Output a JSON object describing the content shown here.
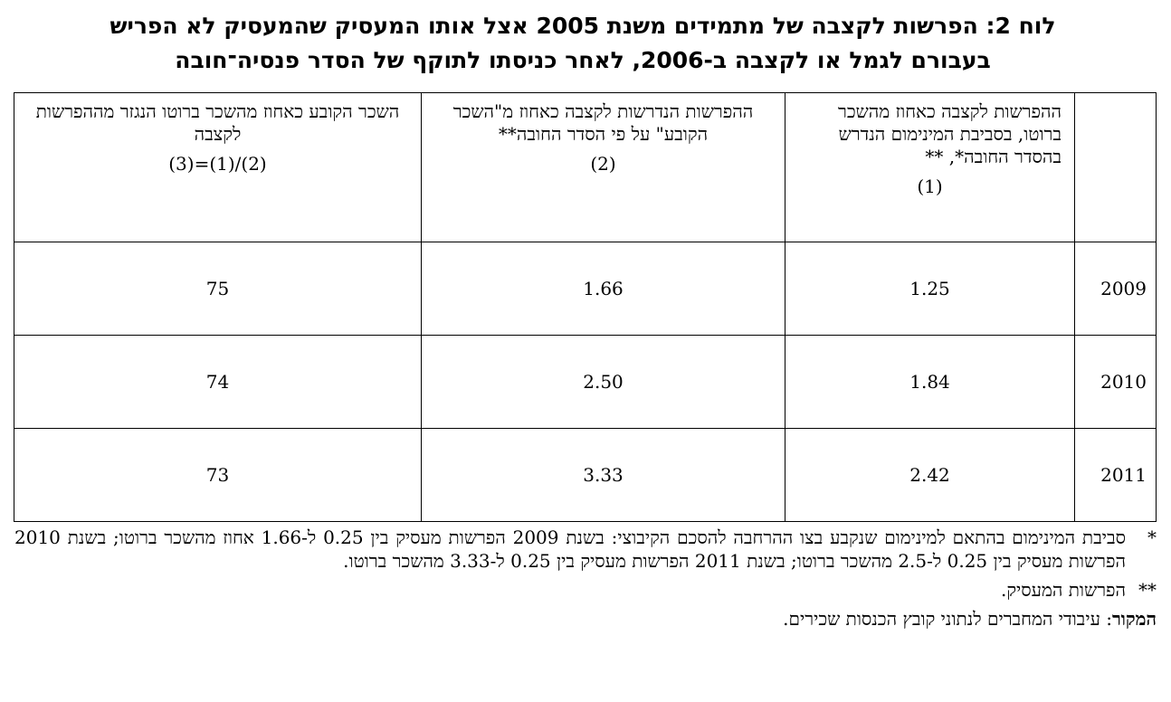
{
  "title": {
    "line1": "לוח 2: הפרשות לקצבה של מתמידים משנת 2005 אצל אותו המעסיק שהמעסיק לא הפריש",
    "line2": "בעבורם לגמל או לקצבה ב-2006, לאחר כניסתו לתוקף של הסדר פנסיה־חובה"
  },
  "table": {
    "headers": [
      {
        "text": "",
        "num": ""
      },
      {
        "text": "ההפרשות לקצבה כאחוז מהשכר ברוטו, בסביבת המינימום הנדרש בהסדר החובה*, **",
        "num": "(1)"
      },
      {
        "text": "ההפרשות הנדרשות לקצבה כאחוז מ\"השכר הקובע\" על פי הסדר החובה**",
        "num": "(2)"
      },
      {
        "text": "השכר הקובע כאחוז מהשכר ברוטו הנגזר מההפרשות לקצבה",
        "num": "(3)=(1)/(2)"
      }
    ],
    "rows": [
      {
        "year": "2009",
        "c1": "1.25",
        "c2": "1.66",
        "c3": "75"
      },
      {
        "year": "2010",
        "c1": "1.84",
        "c2": "2.50",
        "c3": "74"
      },
      {
        "year": "2011",
        "c1": "2.42",
        "c2": "3.33",
        "c3": "73"
      }
    ]
  },
  "notes": {
    "note1_mark": "*",
    "note1_text": "סביבת המינימום בהתאם למינימום שנקבע בצו ההרחבה להסכם הקיבוצי: בשנת 2009 הפרשות מעסיק בין 0.25 ל-1.66 אחוז מהשכר ברוטו; בשנת 2010 הפרשות מעסיק בין 0.25 ל-2.5 מהשכר ברוטו; בשנת 2011 הפרשות מעסיק בין 0.25 ל-3.33 מהשכר ברוטו.",
    "note2_mark": "**",
    "note2_text": "הפרשות המעסיק.",
    "source_label": "המקור",
    "source_text": ": עיבודי המחברים לנתוני קובץ הכנסות שכירים."
  }
}
